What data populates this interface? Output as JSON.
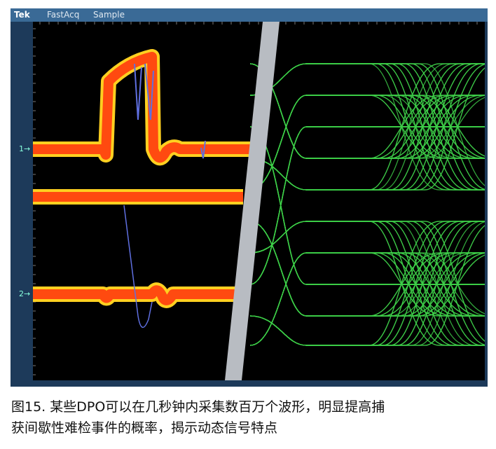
{
  "scope": {
    "brand": "Tek",
    "mode": "FastAcq",
    "acquisition": "Sample",
    "channel_markers": [
      "1",
      "2"
    ],
    "colors": {
      "frame": "#1d3a5a",
      "titlebar": "#3a6a96",
      "eye": "#3fcf4a",
      "hot": "#ff4a10",
      "warm": "#ffd020",
      "cool": "#5f6fe0"
    }
  },
  "caption": {
    "line1": "图15. 某些DPO可以在几秒钟内采集数百万个波形，明显提高捕",
    "line2": "获间歇性难检事件的概率，揭示动态信号特点"
  }
}
